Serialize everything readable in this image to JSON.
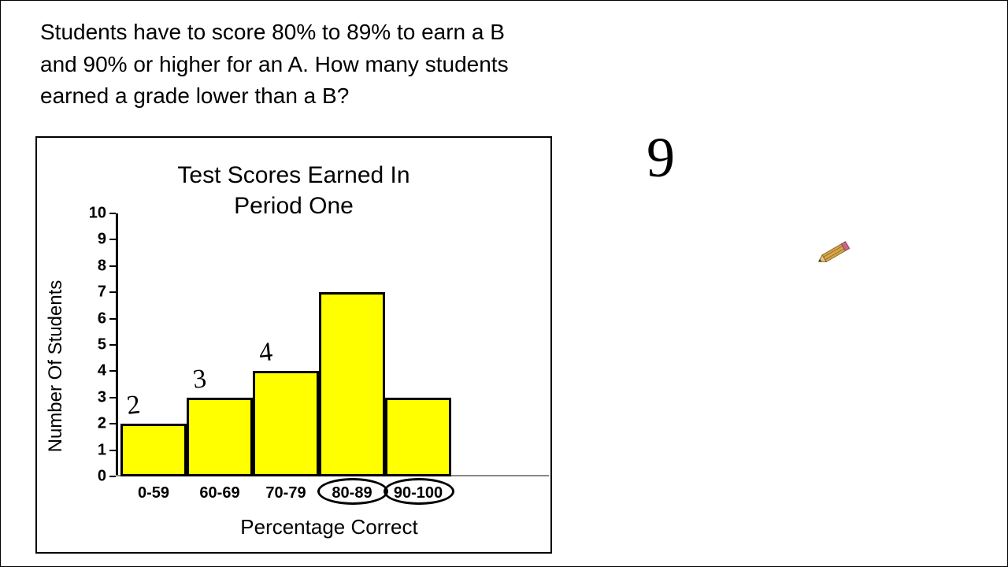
{
  "question_text": "Students have to score 80% to 89% to earn a B and 90% or higher for an A.  How many students earned a grade lower than a B?",
  "chart": {
    "type": "bar",
    "title_line1": "Test Scores Earned In",
    "title_line2": "Period One",
    "title_fontsize": 30,
    "x_label": "Percentage Correct",
    "y_label": "Number Of Students",
    "label_fontsize": 26,
    "categories": [
      "0-59",
      "60-69",
      "70-79",
      "80-89",
      "90-100"
    ],
    "values": [
      2,
      3,
      4,
      7,
      3
    ],
    "bar_color": "#ffff00",
    "bar_border_color": "#000000",
    "bar_border_width": 3,
    "ylim": [
      0,
      10
    ],
    "ytick_step": 1,
    "yticks": [
      0,
      1,
      2,
      3,
      4,
      5,
      6,
      7,
      8,
      9,
      10
    ],
    "background_color": "#ffffff",
    "axis_color": "#000000"
  },
  "annotations": {
    "bar_value_handwritten": [
      "2",
      "3",
      "4",
      "",
      ""
    ],
    "circled_category_indices": [
      3,
      4
    ]
  },
  "answer": "9",
  "icons": {
    "pencil": "pencil-icon"
  },
  "colors": {
    "text": "#000000",
    "pencil_body": "#d9a64a",
    "pencil_eraser": "#cc6688"
  }
}
